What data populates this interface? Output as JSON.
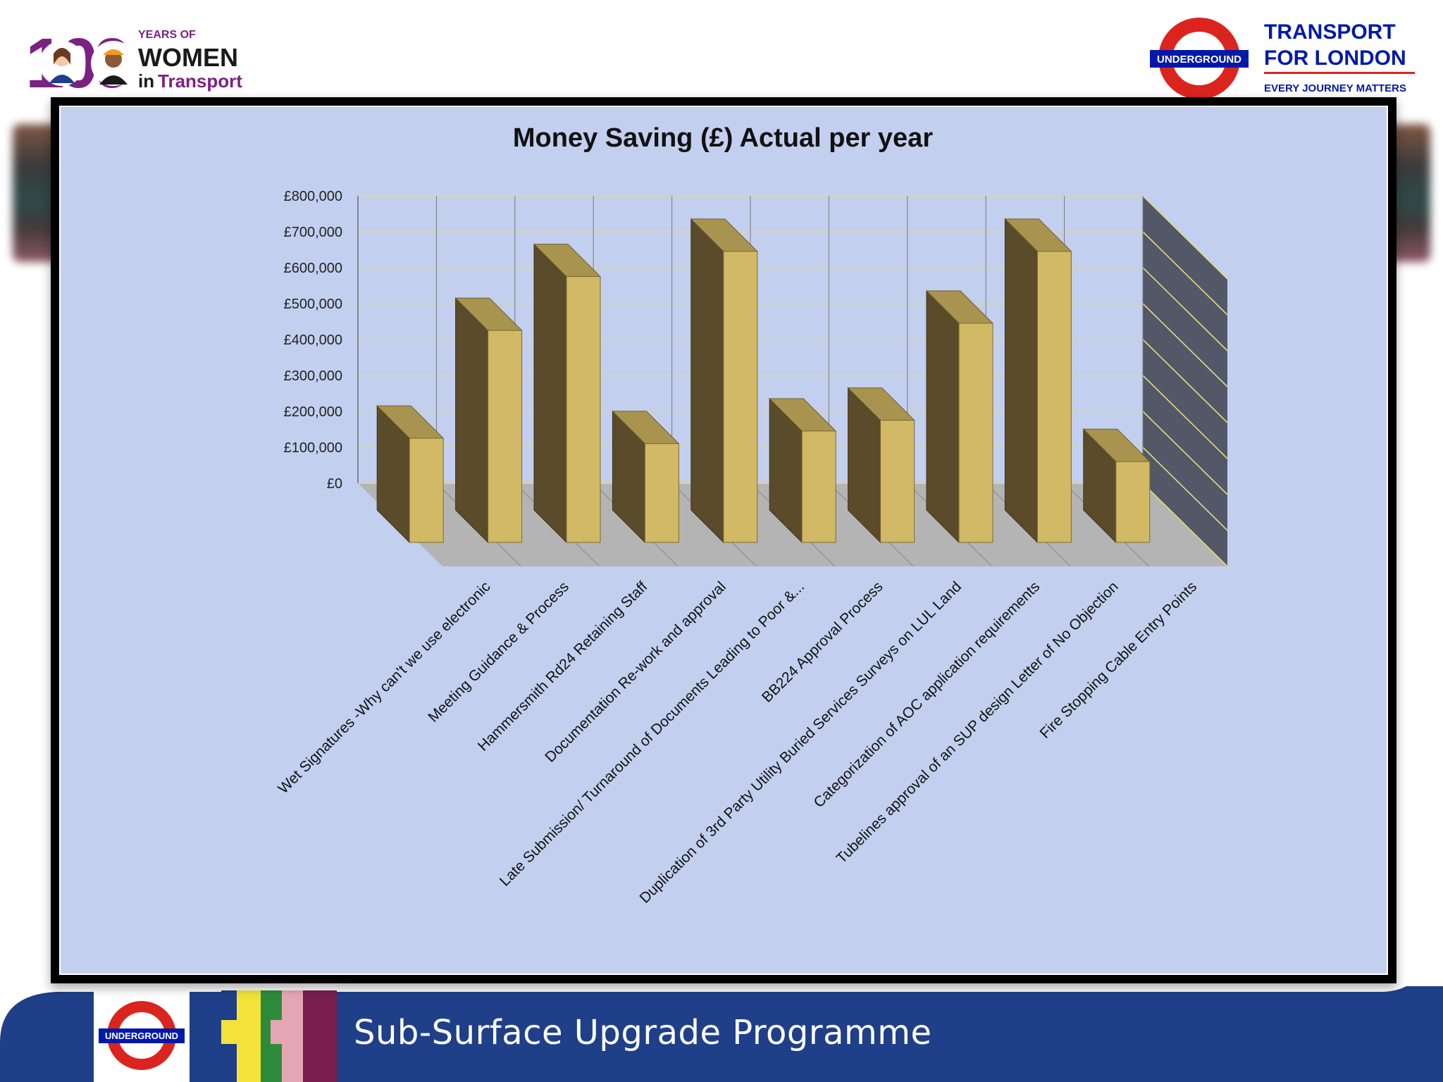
{
  "branding": {
    "women_logo": {
      "number": "100",
      "line1": "YEARS OF",
      "line2": "WOMEN",
      "line3_a": "in",
      "line3_b": "Transport"
    },
    "tfl_logo": {
      "roundel_text": "UNDERGROUND",
      "line1": "TRANSPORT",
      "line2": "FOR LONDON",
      "tagline": "EVERY JOURNEY MATTERS"
    },
    "bottom_roundel_text": "UNDERGROUND"
  },
  "footer": {
    "title": "Sub-Surface Upgrade Programme"
  },
  "colors": {
    "chart_background": "#c3cfee",
    "bar_front": "#d1b965",
    "bar_side": "#5a4b2a",
    "bar_top": "#a8944f",
    "floor": "#b4b4b4",
    "back_wall": "#525868",
    "gridline": "#e8d77a",
    "footer_blue": "#1f3f88",
    "tfl_red": "#dc241f",
    "tfl_blue": "#0019a8"
  },
  "chart_data": {
    "type": "bar",
    "style": "3d-column",
    "title": "Money Saving (£)  Actual per year",
    "xlabel": "",
    "ylabel": "",
    "ylim": [
      0,
      800000
    ],
    "y_ticks": [
      "£0",
      "£100,000",
      "£200,000",
      "£300,000",
      "£400,000",
      "£500,000",
      "£600,000",
      "£700,000",
      "£800,000"
    ],
    "grid": true,
    "legend": "none",
    "categories": [
      "Wet Signatures -Why can't we use electronic",
      "Meeting Guidance & Process",
      "Hammersmith Rd24 Retaining Staff",
      "Documentation Re-work and approval",
      "Late Submission/ Turnaround of Documents Leading to Poor &...",
      "BB224 Approval Process",
      "Duplication of 3rd Party Utility Buried Services Surveys on LUL Land",
      "Categorization of AOC application requirements",
      "Tubelines approval of an SUP design Letter of No Objection",
      "Fire Stopping Cable Entry Points"
    ],
    "values": [
      290000,
      590000,
      740000,
      275000,
      810000,
      310000,
      340000,
      610000,
      810000,
      225000
    ]
  }
}
